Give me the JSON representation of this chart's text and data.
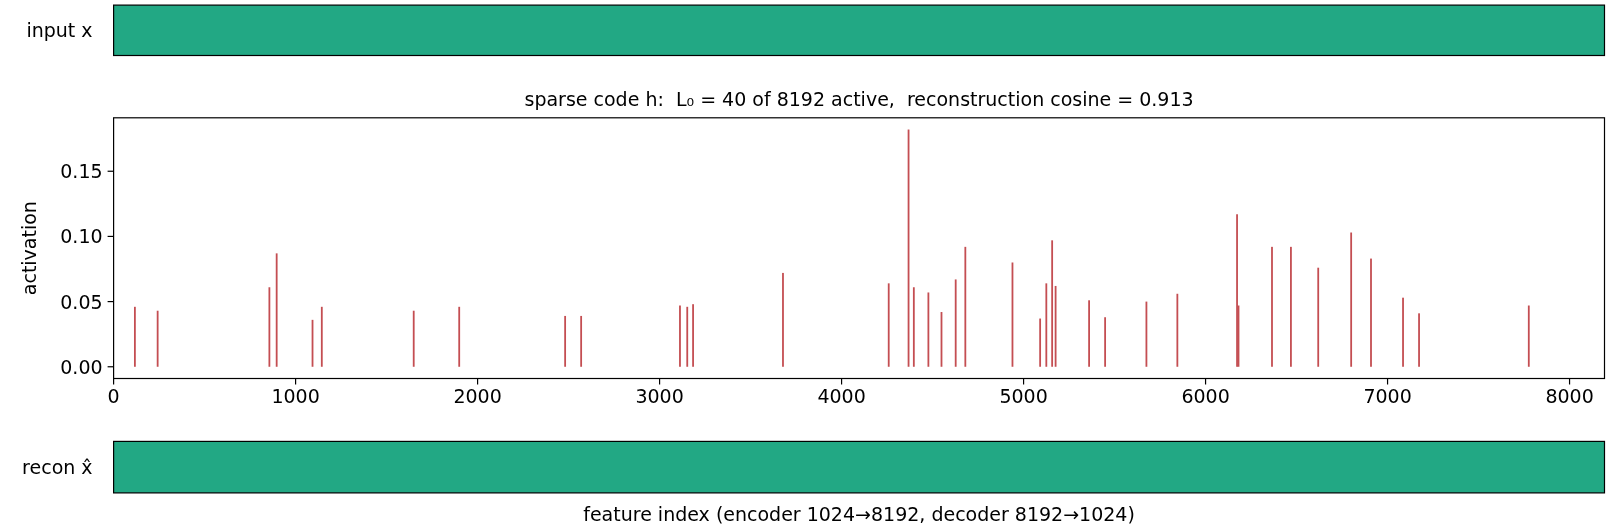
{
  "chart_data": [
    {
      "type": "other",
      "ylabel": "input x"
    },
    {
      "type": "bar",
      "title": "sparse code h:  L₀ = 40 of 8192 active,  reconstruction cosine = 0.913",
      "ylabel": "activation",
      "x": [
        117,
        242,
        856,
        896,
        1093,
        1144,
        1649,
        1899,
        2481,
        2569,
        3112,
        3152,
        3184,
        3678,
        4259,
        4368,
        4397,
        4477,
        4549,
        4627,
        4680,
        4939,
        5091,
        5125,
        5157,
        5176,
        5360,
        5448,
        5675,
        5845,
        6173,
        6181,
        6365,
        6469,
        6619,
        6800,
        6909,
        7085,
        7173,
        7776
      ],
      "values": [
        0.046,
        0.043,
        0.061,
        0.087,
        0.036,
        0.046,
        0.043,
        0.046,
        0.039,
        0.039,
        0.047,
        0.046,
        0.048,
        0.072,
        0.064,
        0.182,
        0.061,
        0.057,
        0.042,
        0.067,
        0.092,
        0.08,
        0.037,
        0.064,
        0.097,
        0.062,
        0.051,
        0.038,
        0.05,
        0.056,
        0.117,
        0.047,
        0.092,
        0.092,
        0.076,
        0.103,
        0.083,
        0.053,
        0.041,
        0.047
      ],
      "color": "#c44e52",
      "xlim": [
        0,
        8192
      ],
      "xticks": [
        0,
        1000,
        2000,
        3000,
        4000,
        5000,
        6000,
        7000,
        8000
      ],
      "ylim": [
        -0.009,
        0.191
      ],
      "yticks": [
        {
          "value": 0,
          "label": "0.00"
        },
        0.05,
        {
          "value": 0.1,
          "label": "0.10"
        },
        0.15
      ]
    },
    {
      "type": "other",
      "ylabel": "recon x̂",
      "xlabel": "feature index (encoder 1024→8192, decoder 8192→1024)"
    }
  ]
}
